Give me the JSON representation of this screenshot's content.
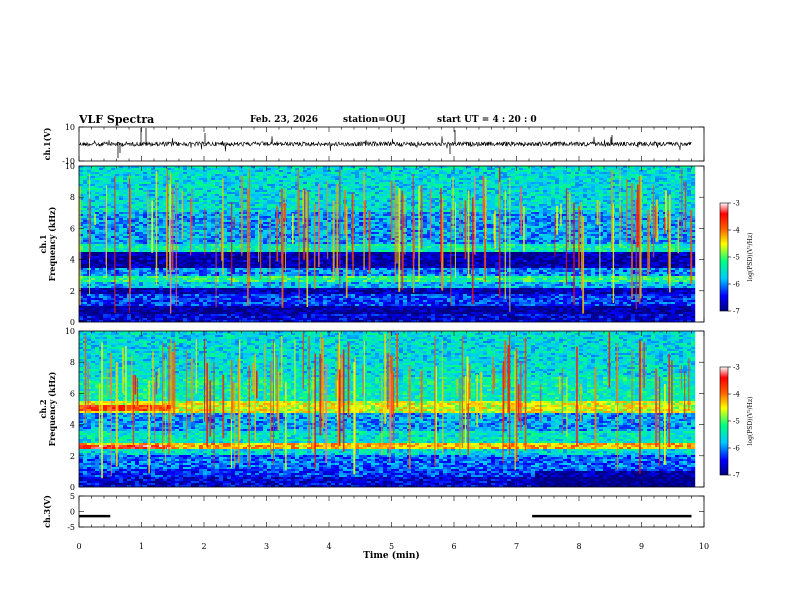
{
  "header": {
    "title": "VLF Spectra",
    "date": "Feb. 23, 2026",
    "station": "station=OUJ",
    "start": "start  UT =  4 : 20 : 0"
  },
  "colors": {
    "colormap": [
      "#000080",
      "#0000ff",
      "#00c8ff",
      "#00ff80",
      "#ffff00",
      "#ff6000",
      "#ff0000",
      "#ffffff"
    ]
  },
  "chart_data": [
    {
      "type": "line",
      "panel": "ch1-waveform",
      "ylabel": "ch.1(V)",
      "ylim": [
        -10,
        10
      ],
      "yticks": [
        "10",
        "-10"
      ],
      "baseline": 0
    },
    {
      "type": "heatmap",
      "panel": "ch1-spectrogram",
      "ylabel_top": "ch.1",
      "ylabel": "Frequency (kHz)",
      "ylim": [
        0,
        10
      ],
      "yticks": [
        "0",
        "2",
        "4",
        "6",
        "8",
        "10"
      ],
      "colorbar": {
        "label": "log(PSD)(V²/Hz)",
        "ticks": [
          "-3",
          "-4",
          "-5",
          "-6",
          "-7"
        ],
        "range": [
          -7,
          -3
        ]
      },
      "bands": [
        {
          "from": 0.0,
          "to": 0.5,
          "level": -6.6
        },
        {
          "from": 0.5,
          "to": 1.0,
          "level": -6.9
        },
        {
          "from": 1.0,
          "to": 1.8,
          "level": -6.3
        },
        {
          "from": 1.8,
          "to": 2.2,
          "level": -6.8
        },
        {
          "from": 2.2,
          "to": 2.6,
          "level": -5.8
        },
        {
          "from": 2.6,
          "to": 2.9,
          "level": -5.2
        },
        {
          "from": 2.9,
          "to": 3.4,
          "level": -6.0
        },
        {
          "from": 3.4,
          "to": 4.5,
          "level": -6.8
        },
        {
          "from": 4.5,
          "to": 5.0,
          "level": -5.4
        },
        {
          "from": 5.0,
          "to": 7.0,
          "level": -5.9
        },
        {
          "from": 7.0,
          "to": 10.0,
          "level": -5.6
        }
      ]
    },
    {
      "type": "heatmap",
      "panel": "ch2-spectrogram",
      "ylabel_top": "ch.2",
      "ylabel": "Frequency (kHz)",
      "ylim": [
        0,
        10
      ],
      "yticks": [
        "0",
        "2",
        "4",
        "6",
        "8",
        "10"
      ],
      "colorbar": {
        "label": "log(PSD)(V²/Hz)",
        "ticks": [
          "-3",
          "-4",
          "-5",
          "-6",
          "-7"
        ],
        "range": [
          -7,
          -3
        ]
      },
      "bands": [
        {
          "from": 0.0,
          "to": 0.6,
          "level": -6.6
        },
        {
          "from": 0.6,
          "to": 1.2,
          "level": -6.3
        },
        {
          "from": 1.2,
          "to": 2.0,
          "level": -6.1
        },
        {
          "from": 2.0,
          "to": 2.4,
          "level": -5.6
        },
        {
          "from": 2.4,
          "to": 2.8,
          "level": -4.3
        },
        {
          "from": 2.8,
          "to": 3.6,
          "level": -5.5
        },
        {
          "from": 3.6,
          "to": 4.8,
          "level": -5.9
        },
        {
          "from": 4.8,
          "to": 5.5,
          "level": -4.6
        },
        {
          "from": 5.5,
          "to": 7.0,
          "level": -5.4
        },
        {
          "from": 7.0,
          "to": 10.0,
          "level": -5.6
        }
      ]
    },
    {
      "type": "line",
      "panel": "ch3-waveform",
      "ylabel": "ch.3(V)",
      "ylim": [
        -5,
        5
      ],
      "yticks": [
        "5",
        "0",
        "-5"
      ],
      "segments": [
        {
          "x": [
            0.0,
            0.5
          ],
          "y": -1.5
        },
        {
          "x": [
            7.25,
            9.8
          ],
          "y": -1.5
        }
      ]
    }
  ],
  "x_axis": {
    "xlabel": "Time (min)",
    "xlim": [
      0,
      10
    ],
    "xticks": [
      "0",
      "1",
      "2",
      "3",
      "4",
      "5",
      "6",
      "7",
      "8",
      "9",
      "10"
    ],
    "data_end": 9.8
  }
}
